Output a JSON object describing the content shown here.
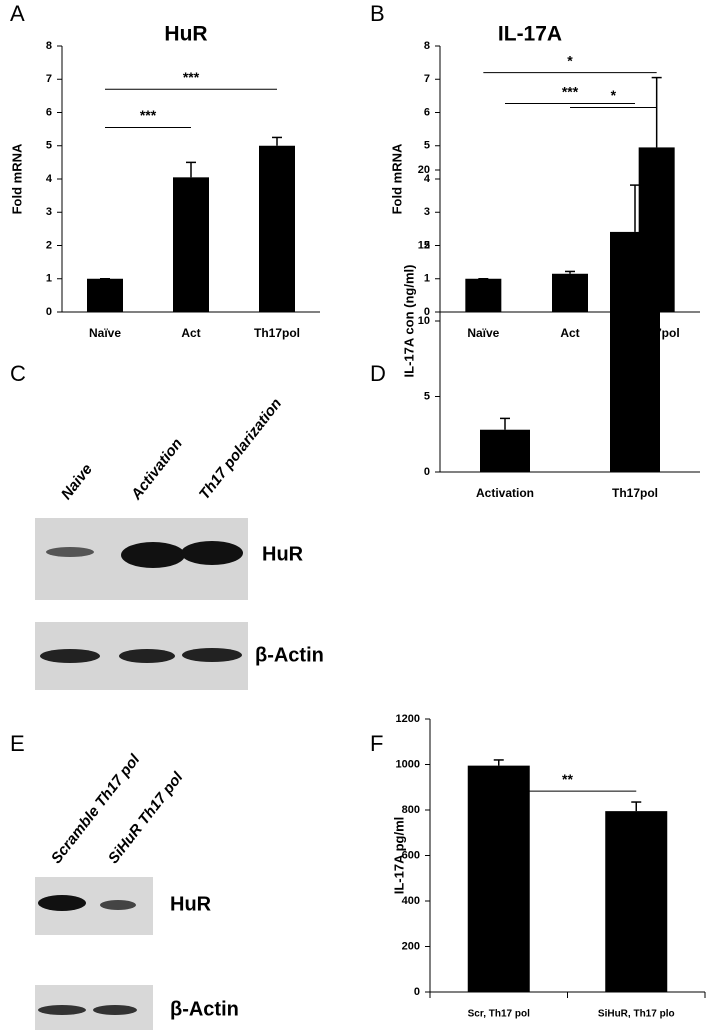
{
  "chart_data": [
    {
      "type": "bar",
      "panel": "A",
      "title": "HuR",
      "y_label": "Fold mRNA",
      "categories": [
        "Naïve",
        "Act",
        "Th17pol"
      ],
      "values": [
        1,
        4.05,
        5.0
      ],
      "errors": [
        0,
        0.45,
        0.25
      ],
      "color": "#000000",
      "ylim": [
        0,
        8
      ],
      "yticks": [
        0,
        1,
        2,
        3,
        4,
        5,
        6,
        7,
        8
      ],
      "annotations": [
        {
          "label": "***",
          "from": 0,
          "to": 1,
          "y": 5.55
        },
        {
          "label": "***",
          "from": 0,
          "to": 2,
          "y": 6.7
        }
      ]
    },
    {
      "type": "bar",
      "panel": "B",
      "title": "IL-17A",
      "y_label": "Fold mRNA",
      "categories": [
        "Naïve",
        "Act",
        "Th17pol"
      ],
      "values": [
        1,
        1.15,
        4.95
      ],
      "errors": [
        0,
        0.07,
        2.1
      ],
      "color": "#000000",
      "ylim": [
        0,
        8
      ],
      "yticks": [
        0,
        1,
        2,
        3,
        4,
        5,
        6,
        7,
        8
      ],
      "annotations": [
        {
          "label": "*",
          "from": 0,
          "to": 2,
          "y": 7.2
        },
        {
          "label": "*",
          "from": 1,
          "to": 2,
          "y": 6.15
        }
      ]
    },
    {
      "type": "bar",
      "panel": "D",
      "y_label": "IL-17A  con (ng/ml)",
      "categories": [
        "Activation",
        "Th17pol"
      ],
      "values": [
        2.8,
        15.9
      ],
      "errors": [
        0.75,
        3.1
      ],
      "color": "#000000",
      "ylim": [
        0,
        20
      ],
      "yticks": [
        0,
        5,
        10,
        15,
        20
      ],
      "annotations": [
        {
          "label": "***",
          "from": 0,
          "to": 1,
          "y": 24.4
        }
      ]
    },
    {
      "type": "bar",
      "panel": "F",
      "y_label": "IL-17A pg/ml",
      "categories": [
        "Scr, Th17 pol",
        "SiHuR, Th17 plo"
      ],
      "values": [
        995,
        795
      ],
      "errors": [
        25,
        40
      ],
      "color": "#000000",
      "ylim": [
        0,
        1200
      ],
      "yticks": [
        0,
        200,
        400,
        600,
        800,
        1000,
        1200
      ],
      "annotations": [
        {
          "label": "**",
          "from": 0,
          "to": 1,
          "y": 883
        }
      ]
    }
  ],
  "blots": [
    {
      "panel": "C",
      "lanes": [
        "Naive",
        "Activation",
        "Th17 polarization"
      ],
      "rows": [
        "HuR",
        "β-Actin"
      ]
    },
    {
      "panel": "E",
      "lanes": [
        "Scramble Th17 pol",
        "SiHuR Th17 pol"
      ],
      "rows": [
        "HuR",
        "β-Actin"
      ]
    }
  ]
}
